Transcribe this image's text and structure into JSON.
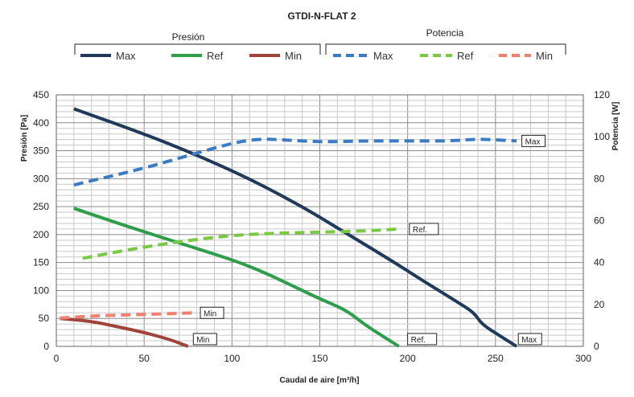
{
  "chart_data": {
    "type": "line",
    "title": "GTDI-N-FLAT 2",
    "xlabel": "Caudal de aire [m³/h]",
    "ylabel_left": "Presión [Pa]",
    "ylabel_right": "Potencia [W]",
    "xlim": [
      0,
      300
    ],
    "ylim_left": [
      0,
      450
    ],
    "ylim_right": [
      0,
      120
    ],
    "x_ticks": [
      "0",
      "50",
      "100",
      "150",
      "200",
      "250",
      "300"
    ],
    "y_left_ticks": [
      "0",
      "50",
      "100",
      "150",
      "200",
      "250",
      "300",
      "350",
      "400",
      "450"
    ],
    "y_right_ticks": [
      "0",
      "20",
      "40",
      "60",
      "80",
      "100",
      "120"
    ],
    "grid": true,
    "legend_groups": [
      {
        "label": "Presión",
        "entries": [
          {
            "name": "Max",
            "color": "#1f3a5a",
            "style": "solid"
          },
          {
            "name": "Ref",
            "color": "#2e9e4a",
            "style": "solid"
          },
          {
            "name": "Min",
            "color": "#a0433a",
            "style": "solid"
          }
        ]
      },
      {
        "label": "Potencia",
        "entries": [
          {
            "name": "Max",
            "color": "#3b7bc4",
            "style": "dashed"
          },
          {
            "name": "Ref",
            "color": "#7ac943",
            "style": "dashed"
          },
          {
            "name": "Min",
            "color": "#f08070",
            "style": "dashed"
          }
        ]
      }
    ],
    "series": [
      {
        "name": "Max",
        "axis": "left",
        "color": "#1f3a5a",
        "style": "solid",
        "x": [
          10,
          50,
          78,
          110,
          140,
          160,
          190,
          210,
          228,
          238,
          242,
          252,
          262
        ],
        "y": [
          425,
          380,
          345,
          300,
          250,
          212,
          155,
          115,
          80,
          60,
          40,
          20,
          0
        ],
        "tag": "Max",
        "tag_at": [
          263,
          13
        ]
      },
      {
        "name": "Ref",
        "axis": "left",
        "color": "#2e9e4a",
        "style": "solid",
        "x": [
          10,
          40,
          75,
          100,
          115,
          130,
          150,
          165,
          175,
          185,
          195
        ],
        "y": [
          247,
          215,
          180,
          155,
          137,
          115,
          85,
          65,
          40,
          20,
          0
        ],
        "tag": "Ref.",
        "tag_at": [
          200,
          13
        ]
      },
      {
        "name": "Min",
        "axis": "left",
        "color": "#a0433a",
        "style": "solid",
        "x": [
          2,
          20,
          35,
          50,
          65,
          75
        ],
        "y": [
          50,
          45,
          35,
          25,
          12,
          0
        ],
        "tag": "Min",
        "tag_at": [
          78,
          13
        ]
      },
      {
        "name": "Max",
        "axis": "right",
        "color": "#3b7bc4",
        "style": "dashed",
        "x": [
          10,
          30,
          50,
          75,
          100,
          115,
          130,
          150,
          175,
          200,
          225,
          240,
          262
        ],
        "y": [
          77,
          81,
          85,
          91,
          97,
          99,
          98.5,
          97.5,
          98,
          98,
          98,
          99,
          98
        ],
        "tag": "Max",
        "tag_at": [
          265,
          98
        ]
      },
      {
        "name": "Ref",
        "axis": "right",
        "color": "#7ac943",
        "style": "dashed",
        "x": [
          15,
          40,
          70,
          100,
          125,
          150,
          175,
          195
        ],
        "y": [
          42,
          46,
          50,
          53,
          54,
          54.5,
          55,
          56
        ],
        "tag": "Ref.",
        "tag_at": [
          201,
          56
        ]
      },
      {
        "name": "Min",
        "axis": "right",
        "color": "#f08070",
        "style": "dashed",
        "x": [
          2,
          20,
          40,
          60,
          78
        ],
        "y": [
          13.5,
          14.5,
          15,
          15.5,
          16
        ],
        "tag": "Min",
        "tag_at": [
          82,
          16
        ]
      }
    ]
  }
}
